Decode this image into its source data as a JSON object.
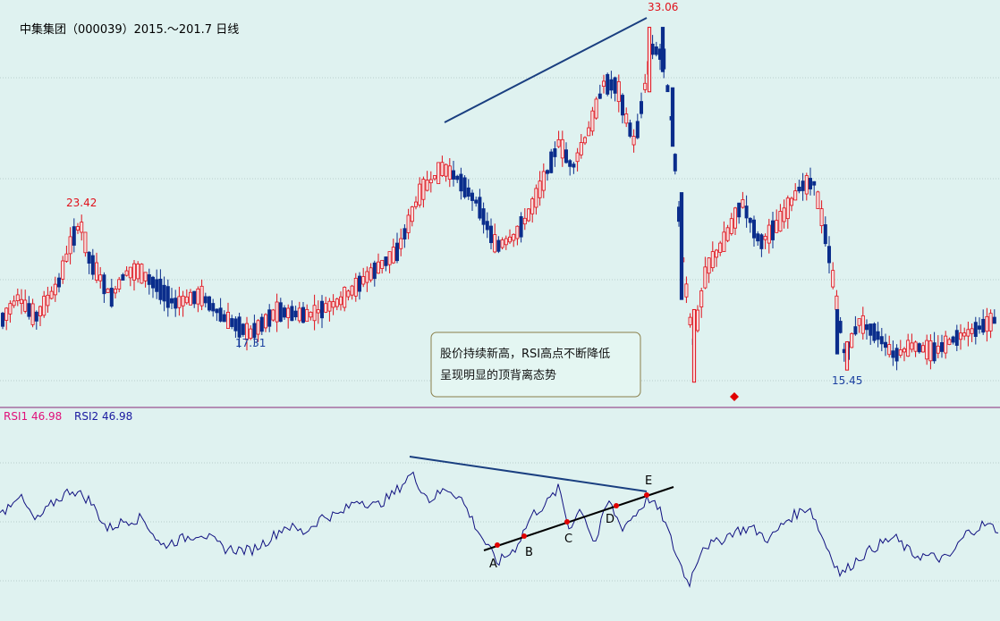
{
  "title": "中集集团（000039）2015.～201.7 日线",
  "price_labels": {
    "high_1": "33.06",
    "high_2": "23.42",
    "low_1": "17.31",
    "low_2": "15.45"
  },
  "rsi_labels": {
    "rsi1": "RSI1 46.98",
    "rsi2": "RSI2 46.98"
  },
  "annotation": {
    "line1": "股价持续新高，RSI高点不断降低",
    "line2": "呈现明显的顶背离态势"
  },
  "points": [
    "A",
    "B",
    "C",
    "D",
    "E"
  ],
  "colors": {
    "background": "#dff2f0",
    "up": "#e0101a",
    "down": "#0a2d8c",
    "rsi_line": "#101080",
    "trend": "#1a3f80",
    "marker": "#e00000"
  },
  "chart_data": [
    {
      "type": "candlestick",
      "title": "中集集团（000039）2015.～201.7 日线",
      "ylim": [
        14.5,
        34
      ],
      "annotations": [
        {
          "label": "33.06",
          "value": 33.06,
          "kind": "high"
        },
        {
          "label": "23.42",
          "value": 23.42,
          "kind": "high"
        },
        {
          "label": "17.31",
          "value": 17.31,
          "kind": "low"
        },
        {
          "label": "15.45",
          "value": 15.45,
          "kind": "low"
        }
      ],
      "trendline": {
        "from": 26.5,
        "to": 33.0
      },
      "key_points": [
        {
          "x": 0,
          "price": 18.3
        },
        {
          "x": 20,
          "price": 19.6
        },
        {
          "x": 40,
          "price": 18.6
        },
        {
          "x": 65,
          "price": 20.2
        },
        {
          "x": 80,
          "price": 22.4
        },
        {
          "x": 90,
          "price": 23.3
        },
        {
          "x": 100,
          "price": 21.5
        },
        {
          "x": 125,
          "price": 19.6
        },
        {
          "x": 140,
          "price": 20.8
        },
        {
          "x": 155,
          "price": 20.9
        },
        {
          "x": 175,
          "price": 20.2
        },
        {
          "x": 195,
          "price": 19.3
        },
        {
          "x": 225,
          "price": 19.7
        },
        {
          "x": 250,
          "price": 18.6
        },
        {
          "x": 280,
          "price": 17.8
        },
        {
          "x": 310,
          "price": 18.9
        },
        {
          "x": 345,
          "price": 18.7
        },
        {
          "x": 380,
          "price": 19.4
        },
        {
          "x": 410,
          "price": 20.6
        },
        {
          "x": 445,
          "price": 21.9
        },
        {
          "x": 470,
          "price": 24.8
        },
        {
          "x": 495,
          "price": 26.0
        },
        {
          "x": 510,
          "price": 25.6
        },
        {
          "x": 535,
          "price": 24.2
        },
        {
          "x": 555,
          "price": 22.1
        },
        {
          "x": 575,
          "price": 22.6
        },
        {
          "x": 590,
          "price": 23.6
        },
        {
          "x": 610,
          "price": 25.6
        },
        {
          "x": 625,
          "price": 27.3
        },
        {
          "x": 640,
          "price": 26.0
        },
        {
          "x": 660,
          "price": 28.0
        },
        {
          "x": 675,
          "price": 30.2
        },
        {
          "x": 690,
          "price": 30.1
        },
        {
          "x": 700,
          "price": 28.5
        },
        {
          "x": 710,
          "price": 27.2
        },
        {
          "x": 720,
          "price": 29.8
        },
        {
          "x": 730,
          "price": 32.0
        },
        {
          "x": 742,
          "price": 31.5
        },
        {
          "x": 752,
          "price": 28.0
        },
        {
          "x": 762,
          "price": 21.9
        },
        {
          "x": 775,
          "price": 17.2
        },
        {
          "x": 790,
          "price": 21.0
        },
        {
          "x": 810,
          "price": 22.4
        },
        {
          "x": 830,
          "price": 24.3
        },
        {
          "x": 850,
          "price": 22.3
        },
        {
          "x": 870,
          "price": 23.2
        },
        {
          "x": 895,
          "price": 25.1
        },
        {
          "x": 910,
          "price": 25.3
        },
        {
          "x": 925,
          "price": 22.3
        },
        {
          "x": 945,
          "price": 16.6
        },
        {
          "x": 960,
          "price": 18.4
        },
        {
          "x": 980,
          "price": 17.8
        },
        {
          "x": 1000,
          "price": 16.7
        },
        {
          "x": 1020,
          "price": 17.2
        },
        {
          "x": 1045,
          "price": 16.9
        },
        {
          "x": 1065,
          "price": 17.5
        },
        {
          "x": 1090,
          "price": 18.0
        },
        {
          "x": 1118,
          "price": 18.6
        }
      ]
    },
    {
      "type": "line",
      "series": [
        {
          "name": "RSI2",
          "values": []
        }
      ],
      "ylim": [
        0,
        100
      ],
      "key_points": [
        {
          "x": 0,
          "v": 45
        },
        {
          "x": 20,
          "v": 63
        },
        {
          "x": 40,
          "v": 40
        },
        {
          "x": 60,
          "v": 56
        },
        {
          "x": 80,
          "v": 67
        },
        {
          "x": 100,
          "v": 58
        },
        {
          "x": 120,
          "v": 34
        },
        {
          "x": 140,
          "v": 41
        },
        {
          "x": 160,
          "v": 43
        },
        {
          "x": 180,
          "v": 20
        },
        {
          "x": 200,
          "v": 25
        },
        {
          "x": 225,
          "v": 31
        },
        {
          "x": 250,
          "v": 18
        },
        {
          "x": 280,
          "v": 16
        },
        {
          "x": 300,
          "v": 25
        },
        {
          "x": 320,
          "v": 37
        },
        {
          "x": 340,
          "v": 31
        },
        {
          "x": 360,
          "v": 44
        },
        {
          "x": 380,
          "v": 46
        },
        {
          "x": 400,
          "v": 59
        },
        {
          "x": 420,
          "v": 53
        },
        {
          "x": 440,
          "v": 63
        },
        {
          "x": 460,
          "v": 80
        },
        {
          "x": 480,
          "v": 58
        },
        {
          "x": 500,
          "v": 68
        },
        {
          "x": 515,
          "v": 60
        },
        {
          "x": 535,
          "v": 32
        },
        {
          "x": 556,
          "v": 6
        },
        {
          "x": 575,
          "v": 17
        },
        {
          "x": 595,
          "v": 46
        },
        {
          "x": 612,
          "v": 56
        },
        {
          "x": 625,
          "v": 68
        },
        {
          "x": 636,
          "v": 35
        },
        {
          "x": 650,
          "v": 52
        },
        {
          "x": 665,
          "v": 21
        },
        {
          "x": 680,
          "v": 58
        },
        {
          "x": 695,
          "v": 35
        },
        {
          "x": 710,
          "v": 46
        },
        {
          "x": 725,
          "v": 60
        },
        {
          "x": 740,
          "v": 46
        },
        {
          "x": 755,
          "v": 15
        },
        {
          "x": 770,
          "v": -12
        },
        {
          "x": 785,
          "v": 20
        },
        {
          "x": 800,
          "v": 22
        },
        {
          "x": 820,
          "v": 32
        },
        {
          "x": 840,
          "v": 35
        },
        {
          "x": 860,
          "v": 25
        },
        {
          "x": 880,
          "v": 42
        },
        {
          "x": 905,
          "v": 53
        },
        {
          "x": 920,
          "v": 26
        },
        {
          "x": 940,
          "v": -4
        },
        {
          "x": 960,
          "v": 10
        },
        {
          "x": 980,
          "v": 20
        },
        {
          "x": 1000,
          "v": 27
        },
        {
          "x": 1020,
          "v": 13
        },
        {
          "x": 1040,
          "v": 11
        },
        {
          "x": 1060,
          "v": 9
        },
        {
          "x": 1080,
          "v": 30
        },
        {
          "x": 1100,
          "v": 38
        },
        {
          "x": 1118,
          "v": 33
        }
      ],
      "divergence": {
        "rsi_highs_trendline": {
          "from": 80,
          "to": 55
        },
        "support_trendline": {
          "from": 1,
          "to": 57
        },
        "points": [
          {
            "label": "A",
            "v": 6
          },
          {
            "label": "B",
            "v": 17
          },
          {
            "label": "C",
            "v": 27
          },
          {
            "label": "D",
            "v": 39
          },
          {
            "label": "E",
            "v": 56
          }
        ]
      }
    }
  ]
}
